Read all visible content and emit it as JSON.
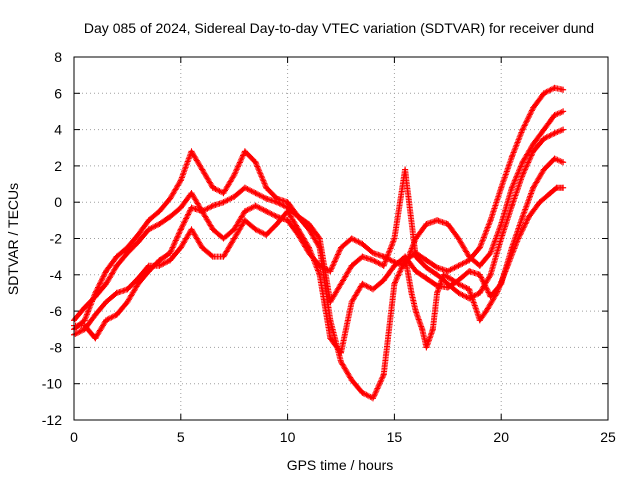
{
  "chart_data": {
    "type": "scatter",
    "title": "Day 085 of 2024, Sidereal Day-to-day VTEC variation (SDTVAR) for receiver dund",
    "xlabel": "GPS time / hours",
    "ylabel": "SDTVAR / TECUs",
    "xlim": [
      0,
      25
    ],
    "ylim": [
      -12,
      8
    ],
    "xticks": [
      0,
      5,
      10,
      15,
      20,
      25
    ],
    "yticks": [
      -12,
      -10,
      -8,
      -6,
      -4,
      -2,
      0,
      2,
      4,
      6,
      8
    ],
    "grid": true,
    "marker": "+",
    "color": "#ff0000",
    "series": [
      {
        "points": [
          [
            0.0,
            -7.0
          ],
          [
            0.5,
            -6.5
          ],
          [
            1.0,
            -5.0
          ],
          [
            1.5,
            -3.8
          ],
          [
            2.0,
            -3.0
          ],
          [
            2.5,
            -2.5
          ],
          [
            3.0,
            -1.8
          ],
          [
            3.5,
            -1.0
          ],
          [
            4.0,
            -0.5
          ],
          [
            4.5,
            0.2
          ],
          [
            5.0,
            1.2
          ],
          [
            5.5,
            2.8
          ],
          [
            6.0,
            1.8
          ],
          [
            6.5,
            0.8
          ],
          [
            7.0,
            0.5
          ],
          [
            7.5,
            1.5
          ],
          [
            8.0,
            2.8
          ],
          [
            8.5,
            2.2
          ],
          [
            9.0,
            0.8
          ],
          [
            9.5,
            0.2
          ],
          [
            10.0,
            0.0
          ],
          [
            10.5,
            -0.8
          ],
          [
            11.0,
            -1.5
          ],
          [
            11.5,
            -2.5
          ],
          [
            12.0,
            -6.5
          ],
          [
            12.5,
            -8.8
          ],
          [
            13.0,
            -9.8
          ],
          [
            13.5,
            -10.5
          ],
          [
            14.0,
            -10.8
          ],
          [
            14.5,
            -9.5
          ],
          [
            15.0,
            -4.5
          ],
          [
            15.5,
            -3.2
          ],
          [
            16.0,
            -2.8
          ],
          [
            16.5,
            -3.2
          ],
          [
            17.0,
            -3.6
          ],
          [
            17.5,
            -3.8
          ],
          [
            18.0,
            -3.5
          ],
          [
            18.5,
            -3.2
          ],
          [
            19.0,
            -2.5
          ],
          [
            19.5,
            -1.0
          ],
          [
            20.0,
            0.8
          ],
          [
            20.5,
            2.5
          ],
          [
            21.0,
            4.0
          ],
          [
            21.5,
            5.2
          ],
          [
            22.0,
            6.0
          ],
          [
            22.5,
            6.3
          ],
          [
            22.9,
            6.2
          ]
        ]
      },
      {
        "points": [
          [
            0.0,
            -6.5
          ],
          [
            0.5,
            -5.8
          ],
          [
            1.0,
            -5.2
          ],
          [
            1.5,
            -4.5
          ],
          [
            2.0,
            -3.5
          ],
          [
            2.5,
            -2.8
          ],
          [
            3.0,
            -2.2
          ],
          [
            3.5,
            -1.5
          ],
          [
            4.0,
            -1.2
          ],
          [
            4.5,
            -0.8
          ],
          [
            5.0,
            -0.3
          ],
          [
            5.5,
            0.5
          ],
          [
            6.0,
            -0.5
          ],
          [
            6.5,
            -1.5
          ],
          [
            7.0,
            -2.0
          ],
          [
            7.5,
            -1.5
          ],
          [
            8.0,
            -0.5
          ],
          [
            8.5,
            -0.2
          ],
          [
            9.0,
            -0.5
          ],
          [
            9.5,
            -0.8
          ],
          [
            10.0,
            -1.0
          ],
          [
            10.5,
            -1.8
          ],
          [
            11.0,
            -2.8
          ],
          [
            11.5,
            -3.5
          ],
          [
            12.0,
            -3.8
          ],
          [
            12.5,
            -2.5
          ],
          [
            13.0,
            -2.0
          ],
          [
            13.5,
            -2.3
          ],
          [
            14.0,
            -2.8
          ],
          [
            14.5,
            -3.0
          ],
          [
            15.0,
            -3.3
          ],
          [
            15.5,
            -3.5
          ],
          [
            16.0,
            -2.0
          ],
          [
            16.5,
            -1.2
          ],
          [
            17.0,
            -1.0
          ],
          [
            17.5,
            -1.2
          ],
          [
            18.0,
            -2.0
          ],
          [
            18.5,
            -3.0
          ],
          [
            19.0,
            -3.5
          ],
          [
            19.5,
            -2.8
          ],
          [
            20.0,
            -1.2
          ],
          [
            20.5,
            0.8
          ],
          [
            21.0,
            2.2
          ],
          [
            21.5,
            3.2
          ],
          [
            22.0,
            4.0
          ],
          [
            22.5,
            4.8
          ],
          [
            22.9,
            5.0
          ]
        ]
      },
      {
        "points": [
          [
            0.0,
            -7.3
          ],
          [
            0.5,
            -7.0
          ],
          [
            1.0,
            -6.2
          ],
          [
            1.5,
            -5.5
          ],
          [
            2.0,
            -5.0
          ],
          [
            2.5,
            -4.8
          ],
          [
            3.0,
            -4.2
          ],
          [
            3.5,
            -3.5
          ],
          [
            4.0,
            -3.5
          ],
          [
            4.5,
            -3.2
          ],
          [
            5.0,
            -2.5
          ],
          [
            5.5,
            -1.5
          ],
          [
            6.0,
            -2.5
          ],
          [
            6.5,
            -3.0
          ],
          [
            7.0,
            -3.0
          ],
          [
            7.5,
            -2.0
          ],
          [
            8.0,
            -1.0
          ],
          [
            8.5,
            -1.5
          ],
          [
            9.0,
            -1.8
          ],
          [
            9.5,
            -1.2
          ],
          [
            10.0,
            -0.5
          ],
          [
            10.5,
            -1.5
          ],
          [
            11.0,
            -2.5
          ],
          [
            11.5,
            -4.0
          ],
          [
            12.0,
            -7.5
          ],
          [
            12.5,
            -8.3
          ],
          [
            13.0,
            -5.5
          ],
          [
            13.5,
            -4.5
          ],
          [
            14.0,
            -4.8
          ],
          [
            14.5,
            -4.3
          ],
          [
            15.0,
            -3.5
          ],
          [
            15.5,
            -3.0
          ],
          [
            16.0,
            -3.8
          ],
          [
            16.5,
            -4.2
          ],
          [
            17.0,
            -4.6
          ],
          [
            17.5,
            -4.7
          ],
          [
            18.0,
            -4.3
          ],
          [
            18.5,
            -3.8
          ],
          [
            19.0,
            -4.0
          ],
          [
            19.5,
            -5.2
          ],
          [
            20.0,
            -4.5
          ],
          [
            20.5,
            -2.5
          ],
          [
            21.0,
            -0.8
          ],
          [
            21.5,
            0.8
          ],
          [
            22.0,
            1.8
          ],
          [
            22.5,
            2.4
          ],
          [
            22.9,
            2.2
          ]
        ]
      },
      {
        "points": [
          [
            0.0,
            -6.8
          ],
          [
            0.5,
            -6.8
          ],
          [
            1.0,
            -7.5
          ],
          [
            1.5,
            -6.5
          ],
          [
            2.0,
            -6.2
          ],
          [
            2.5,
            -5.5
          ],
          [
            3.0,
            -4.5
          ],
          [
            3.5,
            -3.8
          ],
          [
            4.0,
            -3.2
          ],
          [
            4.5,
            -2.8
          ],
          [
            5.0,
            -1.5
          ],
          [
            5.5,
            -0.3
          ],
          [
            6.0,
            -0.5
          ],
          [
            6.5,
            -0.2
          ],
          [
            7.0,
            0.0
          ],
          [
            7.5,
            0.3
          ],
          [
            8.0,
            0.8
          ],
          [
            8.5,
            0.5
          ],
          [
            9.0,
            0.2
          ],
          [
            9.5,
            0.0
          ],
          [
            10.0,
            -0.3
          ],
          [
            10.5,
            -0.8
          ],
          [
            11.0,
            -1.2
          ],
          [
            11.5,
            -2.0
          ],
          [
            12.0,
            -5.5
          ],
          [
            13.0,
            -3.5
          ],
          [
            13.5,
            -3.0
          ],
          [
            14.0,
            -3.2
          ],
          [
            14.5,
            -3.5
          ],
          [
            15.0,
            -2.0
          ],
          [
            15.5,
            1.8
          ],
          [
            16.0,
            -3.0
          ],
          [
            16.5,
            -3.6
          ],
          [
            17.0,
            -4.0
          ],
          [
            17.5,
            -4.5
          ],
          [
            18.0,
            -5.0
          ],
          [
            18.5,
            -5.3
          ],
          [
            19.0,
            -5.0
          ],
          [
            19.5,
            -4.0
          ],
          [
            20.0,
            -2.0
          ],
          [
            20.5,
            -0.2
          ],
          [
            21.0,
            1.5
          ],
          [
            21.5,
            2.8
          ],
          [
            22.0,
            3.5
          ],
          [
            22.5,
            3.8
          ],
          [
            22.9,
            4.0
          ]
        ]
      },
      {
        "points": [
          [
            15.5,
            -3.0
          ],
          [
            15.8,
            -5.0
          ],
          [
            16.0,
            -6.0
          ],
          [
            16.3,
            -7.0
          ],
          [
            16.5,
            -8.0
          ],
          [
            16.8,
            -7.0
          ],
          [
            17.0,
            -5.0
          ],
          [
            17.3,
            -4.0
          ],
          [
            17.6,
            -4.2
          ],
          [
            18.0,
            -4.5
          ],
          [
            18.5,
            -4.8
          ],
          [
            19.0,
            -6.5
          ],
          [
            19.3,
            -6.0
          ],
          [
            19.8,
            -5.0
          ],
          [
            20.3,
            -3.5
          ],
          [
            20.8,
            -2.0
          ],
          [
            21.3,
            -0.8
          ],
          [
            21.8,
            0.0
          ],
          [
            22.3,
            0.5
          ],
          [
            22.6,
            0.8
          ],
          [
            22.9,
            0.8
          ]
        ]
      }
    ]
  }
}
